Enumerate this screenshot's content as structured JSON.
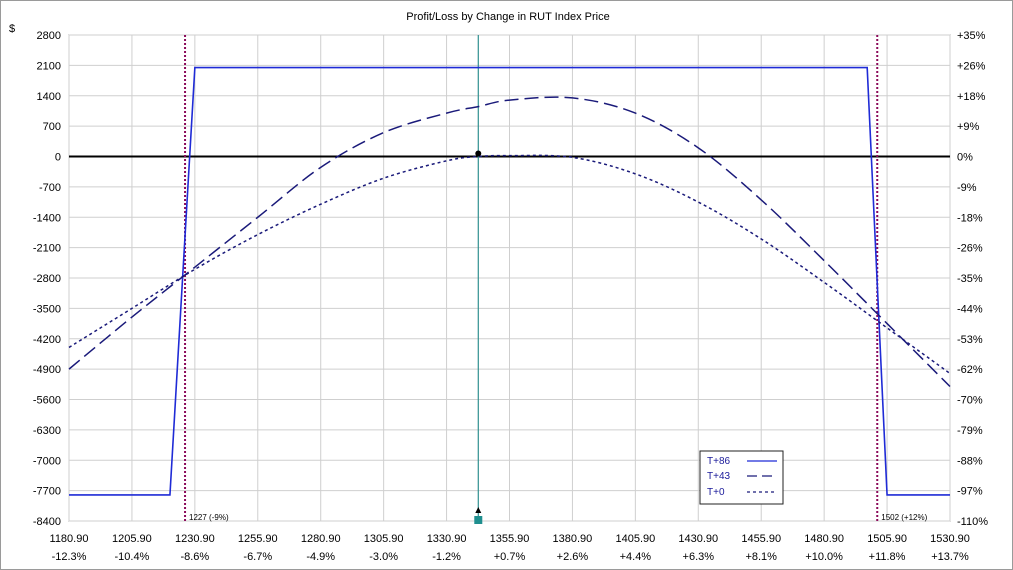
{
  "chart_data": {
    "type": "line",
    "title": "Profit/Loss by Change in RUT Index Price",
    "ylabel": "$",
    "xlim": [
      1180.9,
      1530.9
    ],
    "ylim": [
      -8400,
      2800
    ],
    "x_ticks": [
      "1180.90",
      "1205.90",
      "1230.90",
      "1255.90",
      "1280.90",
      "1305.90",
      "1330.90",
      "1355.90",
      "1380.90",
      "1405.90",
      "1430.90",
      "1455.90",
      "1480.90",
      "1505.90",
      "1530.90"
    ],
    "x_pct_ticks": [
      "-12.3%",
      "-10.4%",
      "-8.6%",
      "-6.7%",
      "-4.9%",
      "-3.0%",
      "-1.2%",
      "+0.7%",
      "+2.6%",
      "+4.4%",
      "+6.3%",
      "+8.1%",
      "+10.0%",
      "+11.8%",
      "+13.7%"
    ],
    "y_ticks": [
      "2800",
      "2100",
      "1400",
      "700",
      "0",
      "-700",
      "-1400",
      "-2100",
      "-2800",
      "-3500",
      "-4200",
      "-4900",
      "-5600",
      "-6300",
      "-7000",
      "-7700",
      "-8400"
    ],
    "y_pct_ticks": [
      "+35%",
      "+26%",
      "+18%",
      "+9%",
      "0%",
      "-9%",
      "-18%",
      "-26%",
      "-35%",
      "-44%",
      "-53%",
      "-62%",
      "-70%",
      "-79%",
      "-88%",
      "-97%",
      "-110%"
    ],
    "grid": true,
    "legend": "bottom-right",
    "current_price": 1343.5,
    "breakevens": [
      {
        "x": 1227,
        "label": "1227 (-9%)"
      },
      {
        "x": 1502,
        "label": "1502 (+12%)"
      }
    ],
    "series": [
      {
        "name": "T+86",
        "style": "solid",
        "color": "#1f2bd6",
        "x": [
          1180.9,
          1221,
          1230.9,
          1498,
          1505.9,
          1530.9
        ],
        "y": [
          -7800,
          -7800,
          2050,
          2050,
          -7800,
          -7800
        ]
      },
      {
        "name": "T+43",
        "style": "long-dash",
        "color": "#1a1a7a",
        "x": [
          1180.9,
          1205.9,
          1230.9,
          1255.9,
          1280.9,
          1305.9,
          1330.9,
          1343.5,
          1355.9,
          1380.9,
          1405.9,
          1430.9,
          1455.9,
          1480.9,
          1505.9,
          1530.9
        ],
        "y": [
          -4900,
          -3700,
          -2550,
          -1400,
          -250,
          550,
          1000,
          1150,
          1300,
          1350,
          1000,
          200,
          -1000,
          -2400,
          -3850,
          -5300
        ]
      },
      {
        "name": "T+0",
        "style": "short-dash",
        "color": "#1a1a7a",
        "x": [
          1180.9,
          1205.9,
          1230.9,
          1255.9,
          1280.9,
          1305.9,
          1330.9,
          1343.5,
          1355.9,
          1380.9,
          1405.9,
          1430.9,
          1455.9,
          1480.9,
          1505.9,
          1530.9
        ],
        "y": [
          -4400,
          -3500,
          -2600,
          -1800,
          -1100,
          -500,
          -100,
          0,
          20,
          -20,
          -400,
          -1050,
          -1900,
          -2900,
          -3950,
          -5000
        ]
      }
    ]
  }
}
